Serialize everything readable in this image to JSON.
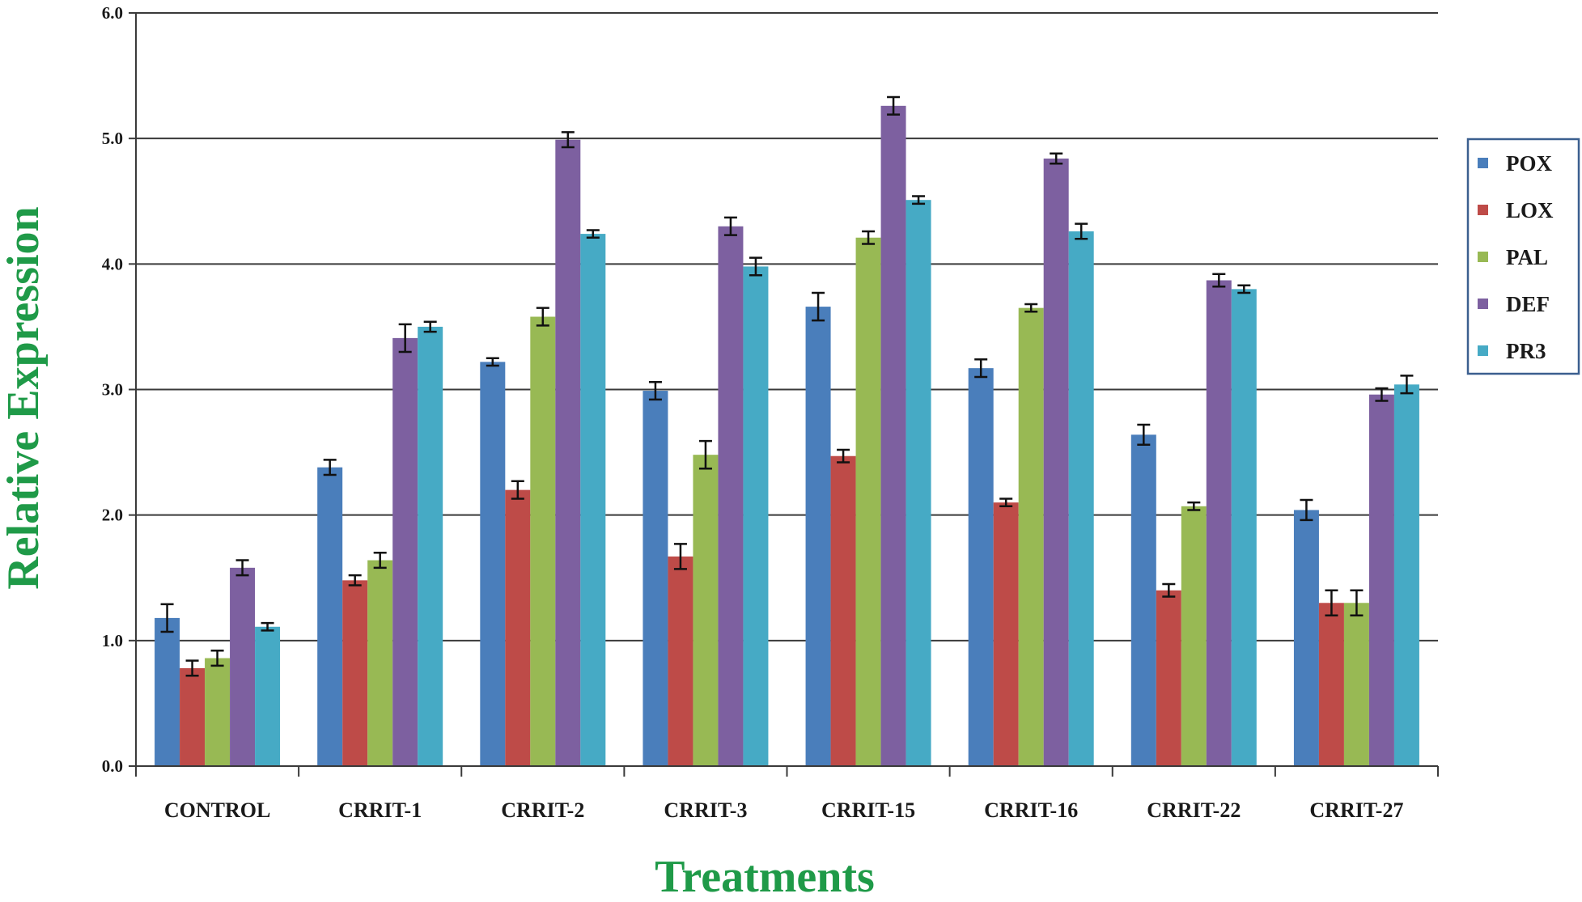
{
  "chart_data": {
    "type": "bar",
    "title": "",
    "xlabel": "Treatments",
    "ylabel": "Relative Expression",
    "ylim": [
      0,
      6
    ],
    "yticks": [
      "0.0",
      "1.0",
      "2.0",
      "3.0",
      "4.0",
      "5.0",
      "6.0"
    ],
    "grid": true,
    "legend_position": "right",
    "error_bars": true,
    "categories": [
      "CONTROL",
      "CRRIT-1",
      "CRRIT-2",
      "CRRIT-3",
      "CRRIT-15",
      "CRRIT-16",
      "CRRIT-22",
      "CRRIT-27"
    ],
    "series": [
      {
        "name": "POX",
        "color": "#4a7ebb",
        "values": [
          1.18,
          2.38,
          3.22,
          2.99,
          3.66,
          3.17,
          2.64,
          2.04
        ],
        "errors": [
          0.11,
          0.06,
          0.03,
          0.07,
          0.11,
          0.07,
          0.08,
          0.08
        ]
      },
      {
        "name": "LOX",
        "color": "#be4b48",
        "values": [
          0.78,
          1.48,
          2.2,
          1.67,
          2.47,
          2.1,
          1.4,
          1.3
        ],
        "errors": [
          0.06,
          0.04,
          0.07,
          0.1,
          0.05,
          0.03,
          0.05,
          0.1
        ]
      },
      {
        "name": "PAL",
        "color": "#98b954",
        "values": [
          0.86,
          1.64,
          3.58,
          2.48,
          4.21,
          3.65,
          2.07,
          1.3
        ],
        "errors": [
          0.06,
          0.06,
          0.07,
          0.11,
          0.05,
          0.03,
          0.03,
          0.1
        ]
      },
      {
        "name": "DEF",
        "color": "#7d60a0",
        "values": [
          1.58,
          3.41,
          4.99,
          4.3,
          5.26,
          4.84,
          3.87,
          2.96
        ],
        "errors": [
          0.06,
          0.11,
          0.06,
          0.07,
          0.07,
          0.04,
          0.05,
          0.05
        ]
      },
      {
        "name": "PR3",
        "color": "#46aac5",
        "values": [
          1.11,
          3.5,
          4.24,
          3.98,
          4.51,
          4.26,
          3.8,
          3.04
        ],
        "errors": [
          0.03,
          0.04,
          0.03,
          0.07,
          0.03,
          0.06,
          0.03,
          0.07
        ]
      }
    ]
  }
}
